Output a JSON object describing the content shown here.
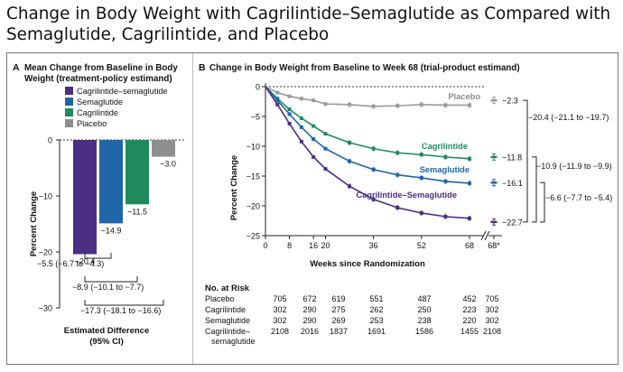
{
  "page_title": "Change in Body Weight with Cagrilintide–Semaglutide as Compared with Semaglutide, Cagrilintide, and Placebo",
  "chart_data": [
    {
      "panel_letter": "A",
      "type": "bar",
      "title": "Mean Change from Baseline in Body Weight (treatment-policy estimand)",
      "ylabel": "Percent Change",
      "ylim": [
        -30,
        0
      ],
      "yticks": [
        "0",
        "−10",
        "−20",
        "−30"
      ],
      "legend": [
        {
          "name": "Cagrilintide–semaglutide",
          "color": "#4a2f82"
        },
        {
          "name": "Semaglutide",
          "color": "#1f66a8"
        },
        {
          "name": "Cagrilintide",
          "color": "#1e8a5e"
        },
        {
          "name": "Placebo",
          "color": "#8f8f8f"
        }
      ],
      "bars": [
        {
          "name": "Cagrilintide–semaglutide",
          "value": -20.4,
          "label": "−20.4",
          "color": "#4a2f82"
        },
        {
          "name": "Semaglutide",
          "value": -14.9,
          "label": "−14.9",
          "color": "#1f66a8"
        },
        {
          "name": "Cagrilintide",
          "value": -11.5,
          "label": "−11.5",
          "color": "#1e8a5e"
        },
        {
          "name": "Placebo",
          "value": -3.0,
          "label": "−3.0",
          "color": "#8f8f8f"
        }
      ],
      "differences": [
        {
          "from": 0,
          "to": 1,
          "label": "−5.5 (−6.7 to −4.3)"
        },
        {
          "from": 0,
          "to": 2,
          "label": "−8.9 (−10.1 to −7.7)"
        },
        {
          "from": 0,
          "to": 3,
          "label": "−17.3 (−18.1 to −16.6)"
        }
      ],
      "footer": [
        "Estimated Difference",
        "(95% CI)"
      ]
    },
    {
      "panel_letter": "B",
      "type": "line",
      "title": "Change in Body Weight from Baseline to Week 68 (trial-product estimand)",
      "xlabel": "Weeks since Randomization",
      "ylabel": "Percent Change",
      "xticks": [
        "0",
        "8",
        "16",
        "20",
        "36",
        "52",
        "68",
        "68*"
      ],
      "yticks": [
        "0",
        "−5",
        "−10",
        "−15",
        "−20",
        "−25"
      ],
      "ylim": [
        -25,
        0
      ],
      "xlim": [
        0,
        70
      ],
      "series": [
        {
          "name": "Placebo",
          "color": "#9a9a9a",
          "label_color": "#8a8a8a",
          "x": [
            0,
            4,
            8,
            12,
            16,
            20,
            28,
            36,
            44,
            52,
            60,
            68
          ],
          "y": [
            0,
            -1.0,
            -1.6,
            -2.0,
            -2.3,
            -2.9,
            -3.0,
            -3.3,
            -3.2,
            -3.0,
            -3.1,
            -3.1
          ],
          "endpoint": -2.3,
          "endpoint_label": "−2.3"
        },
        {
          "name": "Cagrilintide",
          "color": "#1e8a5e",
          "label_color": "#1e8a5e",
          "x": [
            0,
            4,
            8,
            12,
            16,
            20,
            28,
            36,
            44,
            52,
            60,
            68
          ],
          "y": [
            0,
            -2.0,
            -3.8,
            -5.3,
            -6.6,
            -7.9,
            -9.4,
            -10.4,
            -11.1,
            -11.4,
            -11.8,
            -12.1
          ],
          "endpoint": -11.8,
          "endpoint_label": "−11.8"
        },
        {
          "name": "Semaglutide",
          "color": "#1f66a8",
          "label_color": "#1f66a8",
          "x": [
            0,
            4,
            8,
            12,
            16,
            20,
            28,
            36,
            44,
            52,
            60,
            68
          ],
          "y": [
            0,
            -2.3,
            -4.6,
            -6.8,
            -8.8,
            -10.4,
            -12.5,
            -13.9,
            -14.8,
            -15.3,
            -15.9,
            -16.2
          ],
          "endpoint": -16.1,
          "endpoint_label": "−16.1"
        },
        {
          "name": "Cagrilintide–Semaglutide",
          "color": "#4a2f82",
          "label_color": "#4a2f82",
          "x": [
            0,
            4,
            8,
            12,
            16,
            20,
            28,
            36,
            44,
            52,
            60,
            68
          ],
          "y": [
            0,
            -3.0,
            -6.2,
            -9.2,
            -11.8,
            -13.8,
            -16.7,
            -18.9,
            -20.3,
            -21.2,
            -21.8,
            -22.1
          ],
          "endpoint": -22.7,
          "endpoint_label": "−22.7"
        }
      ],
      "brackets": [
        {
          "label": "−20.4 (−21.1 to −19.7)",
          "from": -2.3,
          "to": -22.7
        },
        {
          "label": "−10.9 (−11.9 to −9.9)",
          "from": -11.8,
          "to": -22.7
        },
        {
          "label": "−6.6 (−7.7 to −5.4)",
          "from": -16.1,
          "to": -22.7
        }
      ],
      "at_risk": {
        "title": "No. at Risk",
        "rows": [
          {
            "label": [
              "Placebo"
            ],
            "values": [
              "705",
              "672",
              "619",
              "551",
              "487",
              "452",
              "705"
            ]
          },
          {
            "label": [
              "Cagrilintide"
            ],
            "values": [
              "302",
              "290",
              "275",
              "262",
              "250",
              "223",
              "302"
            ]
          },
          {
            "label": [
              "Semaglutide"
            ],
            "values": [
              "302",
              "290",
              "269",
              "253",
              "238",
              "220",
              "302"
            ]
          },
          {
            "label": [
              "Cagrilintide–",
              "semaglutide"
            ],
            "values": [
              "2108",
              "2016",
              "1837",
              "1691",
              "1586",
              "1455",
              "2108"
            ]
          }
        ]
      }
    }
  ]
}
